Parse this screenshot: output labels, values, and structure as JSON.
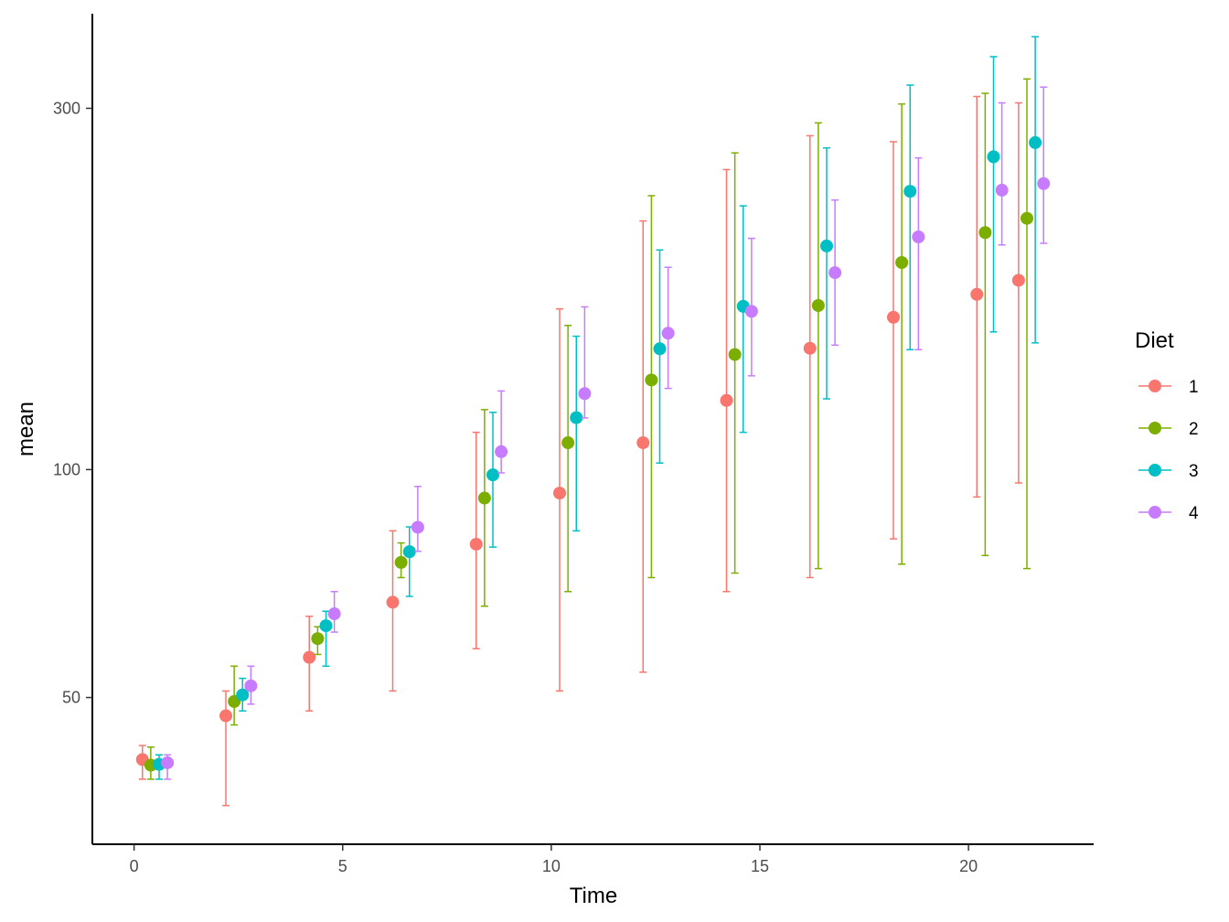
{
  "chart_data": {
    "type": "scatter",
    "subtype": "point-with-errorbars",
    "xlabel": "Time",
    "ylabel": "mean",
    "y_scale": "log",
    "xlim": [
      -1,
      23
    ],
    "ylim": [
      32,
      400
    ],
    "x_ticks": [
      0,
      5,
      10,
      15,
      20
    ],
    "y_ticks": [
      50,
      100,
      300
    ],
    "grid": false,
    "legend": {
      "title": "Diet",
      "position": "right"
    },
    "dodge_offsets": {
      "1": 0.2,
      "2": 0.4,
      "3": 0.6,
      "4": 0.8
    },
    "series": [
      {
        "name": "1",
        "color": "#F8766D",
        "points": [
          {
            "time": 0,
            "mean": 41.4,
            "lower": 39.0,
            "upper": 43.2
          },
          {
            "time": 2,
            "mean": 47.3,
            "lower": 36.0,
            "upper": 51.0
          },
          {
            "time": 4,
            "mean": 56.5,
            "lower": 48.0,
            "upper": 64.0
          },
          {
            "time": 6,
            "mean": 66.8,
            "lower": 51.0,
            "upper": 83.0
          },
          {
            "time": 8,
            "mean": 79.7,
            "lower": 58.0,
            "upper": 112.0
          },
          {
            "time": 10,
            "mean": 93.1,
            "lower": 51.0,
            "upper": 163.0
          },
          {
            "time": 12,
            "mean": 108.5,
            "lower": 54.0,
            "upper": 213.0
          },
          {
            "time": 14,
            "mean": 123.4,
            "lower": 69.0,
            "upper": 249.0
          },
          {
            "time": 16,
            "mean": 144.6,
            "lower": 72.0,
            "upper": 276.0
          },
          {
            "time": 18,
            "mean": 158.9,
            "lower": 81.0,
            "upper": 271.0
          },
          {
            "time": 20,
            "mean": 170.4,
            "lower": 92.0,
            "upper": 311.0
          },
          {
            "time": 21,
            "mean": 177.8,
            "lower": 96.0,
            "upper": 305.0
          }
        ]
      },
      {
        "name": "2",
        "color": "#7CAE00",
        "points": [
          {
            "time": 0,
            "mean": 40.7,
            "lower": 39.0,
            "upper": 43.0
          },
          {
            "time": 2,
            "mean": 49.4,
            "lower": 46.0,
            "upper": 55.0
          },
          {
            "time": 4,
            "mean": 59.8,
            "lower": 57.0,
            "upper": 62.0
          },
          {
            "time": 6,
            "mean": 75.4,
            "lower": 72.0,
            "upper": 80.0
          },
          {
            "time": 8,
            "mean": 91.7,
            "lower": 66.0,
            "upper": 120.0
          },
          {
            "time": 10,
            "mean": 108.5,
            "lower": 69.0,
            "upper": 155.0
          },
          {
            "time": 12,
            "mean": 131.3,
            "lower": 72.0,
            "upper": 230.0
          },
          {
            "time": 14,
            "mean": 141.9,
            "lower": 73.0,
            "upper": 262.0
          },
          {
            "time": 16,
            "mean": 164.7,
            "lower": 74.0,
            "upper": 287.0
          },
          {
            "time": 18,
            "mean": 187.7,
            "lower": 75.0,
            "upper": 304.0
          },
          {
            "time": 20,
            "mean": 205.6,
            "lower": 77.0,
            "upper": 314.0
          },
          {
            "time": 21,
            "mean": 214.7,
            "lower": 74.0,
            "upper": 328.0
          }
        ]
      },
      {
        "name": "3",
        "color": "#00BFC4",
        "points": [
          {
            "time": 0,
            "mean": 40.8,
            "lower": 39.0,
            "upper": 42.0
          },
          {
            "time": 2,
            "mean": 50.4,
            "lower": 48.0,
            "upper": 53.0
          },
          {
            "time": 4,
            "mean": 62.2,
            "lower": 55.0,
            "upper": 65.0
          },
          {
            "time": 6,
            "mean": 77.9,
            "lower": 68.0,
            "upper": 84.0
          },
          {
            "time": 8,
            "mean": 98.4,
            "lower": 79.0,
            "upper": 119.0
          },
          {
            "time": 10,
            "mean": 117.1,
            "lower": 83.0,
            "upper": 150.0
          },
          {
            "time": 12,
            "mean": 144.4,
            "lower": 102.0,
            "upper": 195.0
          },
          {
            "time": 14,
            "mean": 164.3,
            "lower": 112.0,
            "upper": 223.0
          },
          {
            "time": 16,
            "mean": 197.4,
            "lower": 124.0,
            "upper": 266.0
          },
          {
            "time": 18,
            "mean": 233.1,
            "lower": 144.0,
            "upper": 322.0
          },
          {
            "time": 20,
            "mean": 258.9,
            "lower": 152.0,
            "upper": 351.0
          },
          {
            "time": 21,
            "mean": 270.3,
            "lower": 147.0,
            "upper": 373.0
          }
        ]
      },
      {
        "name": "4",
        "color": "#C77CFF",
        "points": [
          {
            "time": 0,
            "mean": 41.0,
            "lower": 39.0,
            "upper": 42.0
          },
          {
            "time": 2,
            "mean": 51.8,
            "lower": 49.0,
            "upper": 55.0
          },
          {
            "time": 4,
            "mean": 64.5,
            "lower": 61.0,
            "upper": 69.0
          },
          {
            "time": 6,
            "mean": 83.9,
            "lower": 78.0,
            "upper": 95.0
          },
          {
            "time": 8,
            "mean": 105.6,
            "lower": 99.0,
            "upper": 127.0
          },
          {
            "time": 10,
            "mean": 126.0,
            "lower": 117.0,
            "upper": 164.0
          },
          {
            "time": 12,
            "mean": 151.4,
            "lower": 128.0,
            "upper": 185.0
          },
          {
            "time": 14,
            "mean": 161.8,
            "lower": 133.0,
            "upper": 202.0
          },
          {
            "time": 16,
            "mean": 182.0,
            "lower": 146.0,
            "upper": 227.0
          },
          {
            "time": 18,
            "mean": 202.9,
            "lower": 144.0,
            "upper": 258.0
          },
          {
            "time": 20,
            "mean": 233.9,
            "lower": 198.0,
            "upper": 305.0
          },
          {
            "time": 21,
            "mean": 238.6,
            "lower": 199.0,
            "upper": 320.0
          }
        ]
      }
    ]
  }
}
